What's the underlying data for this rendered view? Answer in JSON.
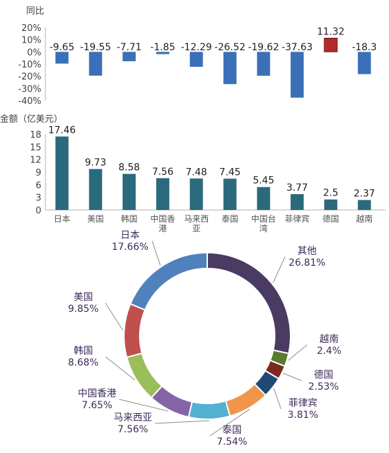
{
  "chart_data": [
    {
      "type": "bar",
      "title": "同比",
      "unit": "%",
      "categories": [
        "日本",
        "美国",
        "韩国",
        "中国香港",
        "马来西亚",
        "泰国",
        "中国台湾",
        "菲律宾",
        "德国",
        "越南"
      ],
      "values": [
        -9.65,
        -19.55,
        -7.71,
        -1.85,
        -12.29,
        -26.52,
        -19.62,
        -37.63,
        11.32,
        -18.3
      ],
      "value_labels": [
        "-9.65",
        "-19.55",
        "-7.71",
        "-1.85",
        "-12.29",
        "-26.52",
        "-19.62",
        "-37.63",
        "11.32",
        "-18.3"
      ],
      "yticks": [
        "20%",
        "10%",
        "0%",
        "-10%",
        "-20%",
        "-30%",
        "-40%"
      ],
      "ylim": [
        -40,
        20
      ],
      "colors": {
        "negative": "#3a70b8",
        "positive": "#b22a2a"
      }
    },
    {
      "type": "bar",
      "title": "金额（亿美元）",
      "categories": [
        "日本",
        "美国",
        "韩国",
        "中国香港",
        "马来西亚",
        "泰国",
        "中国台湾",
        "菲律宾",
        "德国",
        "越南"
      ],
      "category_labels": [
        [
          "日本"
        ],
        [
          "美国"
        ],
        [
          "韩国"
        ],
        [
          "中国香",
          "港"
        ],
        [
          "马来西",
          "亚"
        ],
        [
          "泰国"
        ],
        [
          "中国台",
          "湾"
        ],
        [
          "菲律宾"
        ],
        [
          "德国"
        ],
        [
          "越南"
        ]
      ],
      "values": [
        17.46,
        9.73,
        8.58,
        7.56,
        7.48,
        7.45,
        5.45,
        3.77,
        2.5,
        2.37
      ],
      "value_labels": [
        "17.46",
        "9.73",
        "8.58",
        "7.56",
        "7.48",
        "7.45",
        "5.45",
        "3.77",
        "2.5",
        "2.37"
      ],
      "yticks": [
        "18",
        "15",
        "12",
        "9",
        "6",
        "3",
        "0"
      ],
      "ylim": [
        0,
        18
      ],
      "color": "#2b6a7c"
    },
    {
      "type": "pie",
      "style": "donut",
      "slices": [
        {
          "label": "其他",
          "value": 26.81,
          "pct": "26.81%",
          "color": "#4a3b63"
        },
        {
          "label": "越南",
          "value": 2.4,
          "pct": "2.4%",
          "color": "#5a7a30"
        },
        {
          "label": "德国",
          "value": 2.53,
          "pct": "2.53%",
          "color": "#7b2a22"
        },
        {
          "label": "菲律宾",
          "value": 3.81,
          "pct": "3.81%",
          "color": "#1e4b75"
        },
        {
          "label": "泰国",
          "value": 7.54,
          "pct": "7.54%",
          "color": "#f0954a"
        },
        {
          "label": "马来西亚",
          "value": 7.56,
          "pct": "7.56%",
          "color": "#52b0d2"
        },
        {
          "label": "中国香港",
          "value": 7.65,
          "pct": "7.65%",
          "color": "#8464a6"
        },
        {
          "label": "韩国",
          "value": 8.68,
          "pct": "8.68%",
          "color": "#9bbd5a"
        },
        {
          "label": "美国",
          "value": 9.85,
          "pct": "9.85%",
          "color": "#c0504d"
        },
        {
          "label": "日本",
          "value": 17.66,
          "pct": "17.66%",
          "color": "#4f81bd"
        }
      ],
      "start_color_note_unused": "",
      "label_color": "#3b2a5a"
    }
  ]
}
